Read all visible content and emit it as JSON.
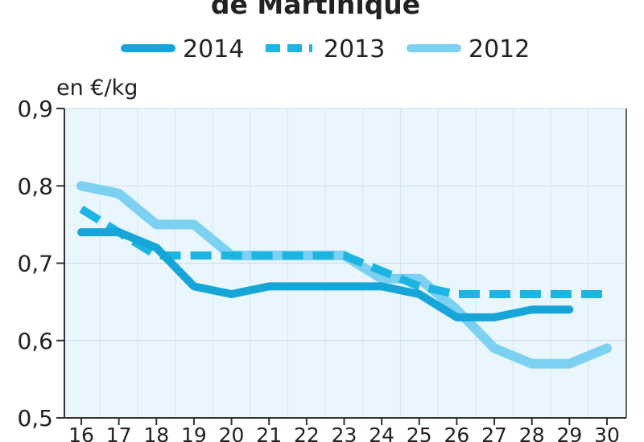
{
  "chart_data": {
    "type": "line",
    "title": "de Martinique",
    "ylabel": "en €/kg",
    "xlabel": "",
    "x": [
      16,
      17,
      18,
      19,
      20,
      21,
      22,
      23,
      24,
      25,
      26,
      27,
      28,
      29,
      30
    ],
    "x_tick_labels": [
      "16",
      "17",
      "18",
      "19",
      "20",
      "21",
      "22",
      "23",
      "24",
      "25",
      "26",
      "27",
      "28",
      "29",
      "30"
    ],
    "ylim": [
      0.5,
      0.9
    ],
    "y_ticks": [
      0.5,
      0.6,
      0.7,
      0.8,
      0.9
    ],
    "y_tick_labels": [
      "0,5",
      "0,6",
      "0,7",
      "0,8",
      "0,9"
    ],
    "grid": true,
    "legend_position": "top",
    "plot_background": "#eaf6fd",
    "series": [
      {
        "name": "2014",
        "style": "solid",
        "color": "#16a5d9",
        "x": [
          16,
          17,
          18,
          19,
          20,
          21,
          22,
          23,
          24,
          25,
          26,
          27,
          28,
          29
        ],
        "values": [
          0.74,
          0.74,
          0.72,
          0.67,
          0.66,
          0.67,
          0.67,
          0.67,
          0.67,
          0.66,
          0.63,
          0.63,
          0.64,
          0.64
        ]
      },
      {
        "name": "2013",
        "style": "dashed",
        "color": "#1cb5e3",
        "x": [
          16,
          17,
          18,
          19,
          20,
          21,
          22,
          23,
          24,
          25,
          26,
          27,
          28,
          29,
          30
        ],
        "values": [
          0.77,
          0.74,
          0.71,
          0.71,
          0.71,
          0.71,
          0.71,
          0.71,
          0.69,
          0.67,
          0.66,
          0.66,
          0.66,
          0.66,
          0.66
        ]
      },
      {
        "name": "2012",
        "style": "solid",
        "color": "#7cd0f2",
        "x": [
          16,
          17,
          18,
          19,
          20,
          21,
          22,
          23,
          24,
          25,
          26,
          27,
          28,
          29,
          30
        ],
        "values": [
          0.8,
          0.79,
          0.75,
          0.75,
          0.71,
          0.71,
          0.71,
          0.71,
          0.68,
          0.68,
          0.64,
          0.59,
          0.57,
          0.57,
          0.59
        ]
      }
    ]
  }
}
